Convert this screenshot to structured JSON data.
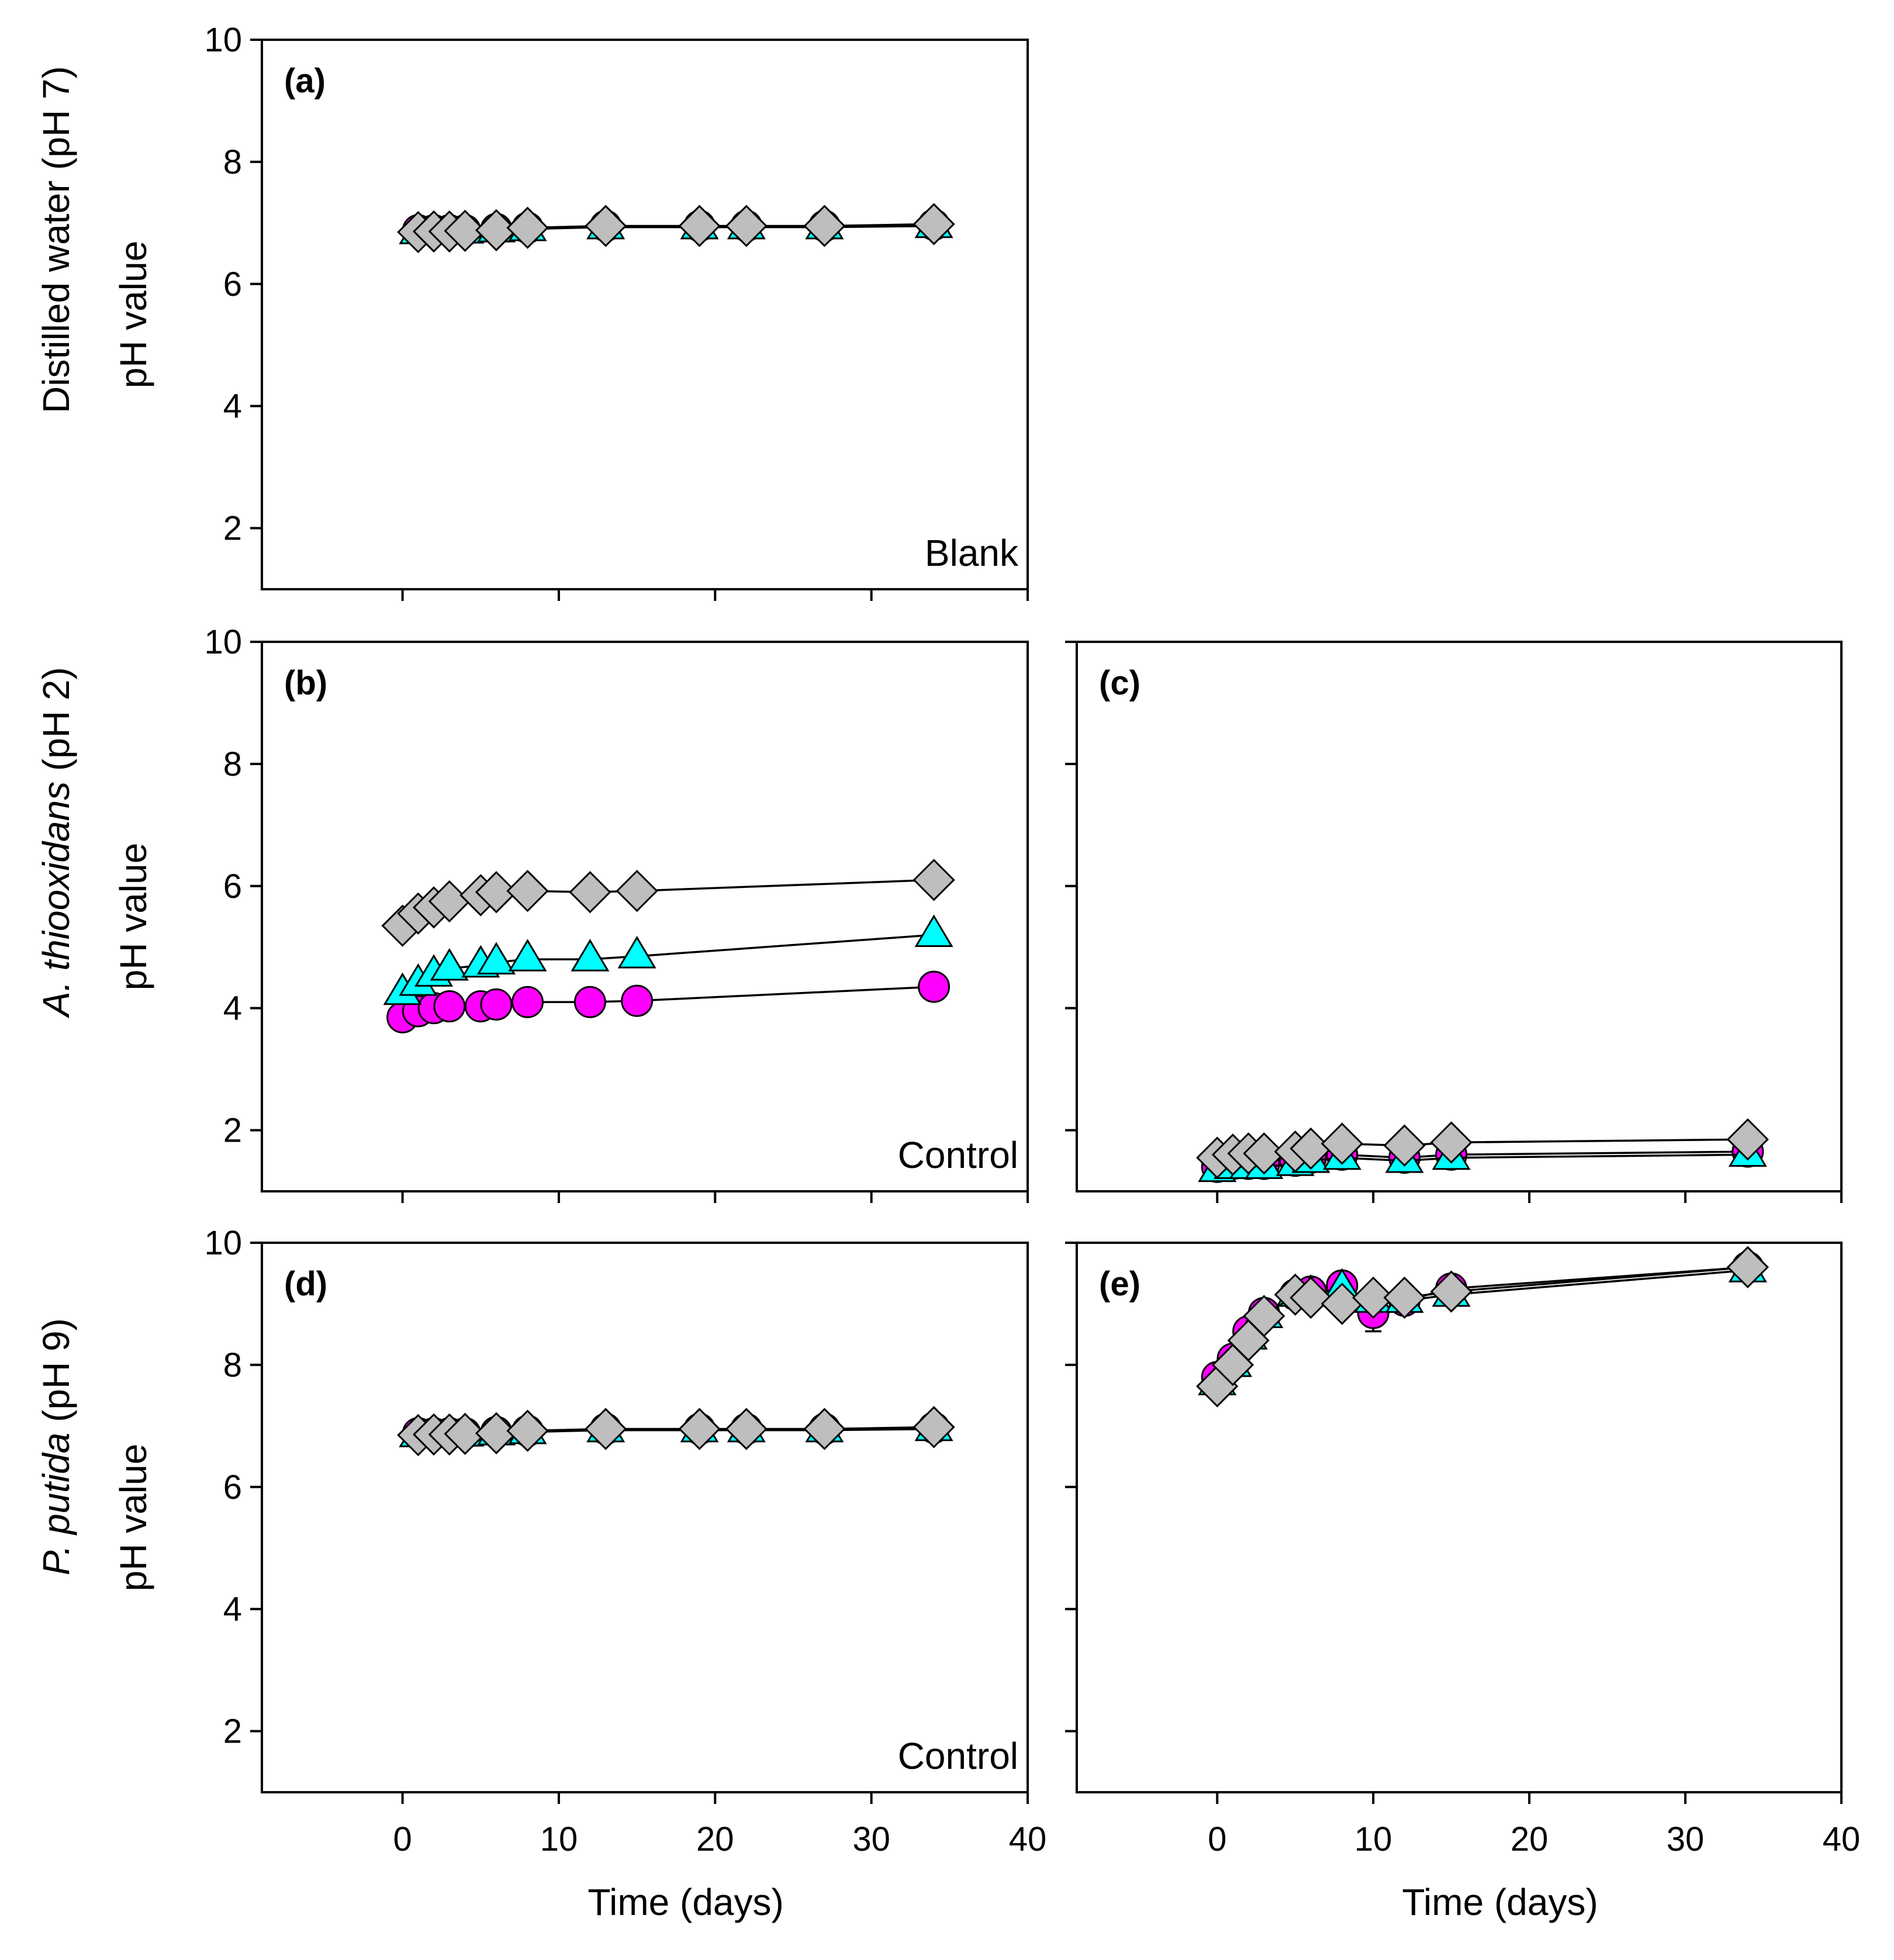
{
  "colors": {
    "circle": "#ff00ff",
    "triangle": "#00ffff",
    "diamond": "#bebebe"
  },
  "row_titles": [
    {
      "text": "Distilled water (pH 7)",
      "italic_part": ""
    },
    {
      "text": " (pH 2)",
      "italic_part": "A. thiooxidans"
    },
    {
      "text": " (pH 9)",
      "italic_part": "P. putida"
    }
  ],
  "chart_data": [
    {
      "id": "a",
      "type": "line",
      "label": "(a)",
      "note": "Blank",
      "ylabel": "pH value",
      "xlabel": "",
      "xlim": [
        -9,
        40
      ],
      "ylim": [
        1,
        10
      ],
      "xticks": [
        0,
        10,
        20,
        30,
        40
      ],
      "yticks": [
        2,
        4,
        6,
        8,
        10
      ],
      "show_xtick_labels": false,
      "show_ytick_labels": true,
      "series": [
        {
          "name": "circle",
          "marker": "circle",
          "x": [
            1,
            2,
            3,
            4,
            6,
            8,
            13,
            19,
            22,
            27,
            34
          ],
          "y": [
            6.88,
            6.88,
            6.88,
            6.88,
            6.9,
            6.92,
            6.95,
            6.95,
            6.95,
            6.95,
            6.97
          ]
        },
        {
          "name": "triangle",
          "marker": "triangle",
          "x": [
            1,
            2,
            3,
            4,
            6,
            8,
            13,
            19,
            22,
            27,
            34
          ],
          "y": [
            6.85,
            6.85,
            6.86,
            6.86,
            6.88,
            6.9,
            6.93,
            6.93,
            6.93,
            6.93,
            6.95
          ]
        },
        {
          "name": "diamond",
          "marker": "diamond",
          "x": [
            1,
            2,
            3,
            4,
            6,
            8,
            13,
            19,
            22,
            27,
            34
          ],
          "y": [
            6.85,
            6.86,
            6.86,
            6.87,
            6.88,
            6.92,
            6.95,
            6.95,
            6.95,
            6.95,
            6.98
          ]
        }
      ]
    },
    {
      "id": "b",
      "type": "line",
      "label": "(b)",
      "note": "Control",
      "ylabel": "pH value",
      "xlabel": "",
      "xlim": [
        -9,
        40
      ],
      "ylim": [
        1,
        10
      ],
      "xticks": [
        0,
        10,
        20,
        30,
        40
      ],
      "yticks": [
        2,
        4,
        6,
        8,
        10
      ],
      "show_xtick_labels": false,
      "show_ytick_labels": true,
      "series": [
        {
          "name": "circle",
          "marker": "circle",
          "x": [
            0,
            1,
            2,
            3,
            5,
            6,
            8,
            12,
            15,
            34
          ],
          "y": [
            3.85,
            3.95,
            4.0,
            4.03,
            4.03,
            4.06,
            4.1,
            4.1,
            4.12,
            4.35
          ]
        },
        {
          "name": "triangle",
          "marker": "triangle",
          "x": [
            0,
            1,
            2,
            3,
            5,
            6,
            8,
            12,
            15,
            34
          ],
          "y": [
            4.25,
            4.4,
            4.55,
            4.65,
            4.7,
            4.75,
            4.8,
            4.8,
            4.85,
            5.2
          ]
        },
        {
          "name": "diamond",
          "marker": "diamond",
          "x": [
            0,
            1,
            2,
            3,
            5,
            6,
            8,
            12,
            15,
            34
          ],
          "y": [
            5.35,
            5.55,
            5.65,
            5.75,
            5.85,
            5.9,
            5.92,
            5.9,
            5.92,
            6.1
          ]
        }
      ]
    },
    {
      "id": "c",
      "type": "line",
      "label": "(c)",
      "note": "",
      "ylabel": "",
      "xlabel": "",
      "xlim": [
        -9,
        40
      ],
      "ylim": [
        1,
        10
      ],
      "xticks": [
        0,
        10,
        20,
        30,
        40
      ],
      "yticks": [
        2,
        4,
        6,
        8,
        10
      ],
      "show_xtick_labels": false,
      "show_ytick_labels": false,
      "series": [
        {
          "name": "circle",
          "marker": "circle",
          "x": [
            0,
            1,
            2,
            3,
            5,
            6,
            8,
            12,
            15,
            34
          ],
          "y": [
            1.4,
            1.45,
            1.45,
            1.45,
            1.5,
            1.55,
            1.6,
            1.55,
            1.6,
            1.65
          ]
        },
        {
          "name": "triangle",
          "marker": "triangle",
          "x": [
            0,
            1,
            2,
            3,
            5,
            6,
            8,
            12,
            15,
            34
          ],
          "y": [
            1.35,
            1.4,
            1.4,
            1.4,
            1.45,
            1.5,
            1.55,
            1.5,
            1.55,
            1.6
          ]
        },
        {
          "name": "diamond",
          "marker": "diamond",
          "x": [
            0,
            1,
            2,
            3,
            5,
            6,
            8,
            12,
            15,
            34
          ],
          "y": [
            1.55,
            1.6,
            1.62,
            1.62,
            1.65,
            1.7,
            1.78,
            1.75,
            1.8,
            1.85
          ]
        }
      ]
    },
    {
      "id": "d",
      "type": "line",
      "label": "(d)",
      "note": "Control",
      "ylabel": "pH value",
      "xlabel": "Time (days)",
      "xlim": [
        -9,
        40
      ],
      "ylim": [
        1,
        10
      ],
      "xticks": [
        0,
        10,
        20,
        30,
        40
      ],
      "yticks": [
        2,
        4,
        6,
        8,
        10
      ],
      "show_xtick_labels": true,
      "show_ytick_labels": true,
      "series": [
        {
          "name": "circle",
          "marker": "circle",
          "x": [
            1,
            2,
            3,
            4,
            6,
            8,
            13,
            19,
            22,
            27,
            34
          ],
          "y": [
            6.88,
            6.88,
            6.88,
            6.88,
            6.9,
            6.92,
            6.95,
            6.95,
            6.95,
            6.95,
            6.97
          ]
        },
        {
          "name": "triangle",
          "marker": "triangle",
          "x": [
            1,
            2,
            3,
            4,
            6,
            8,
            13,
            19,
            22,
            27,
            34
          ],
          "y": [
            6.85,
            6.85,
            6.86,
            6.86,
            6.88,
            6.9,
            6.93,
            6.93,
            6.93,
            6.93,
            6.95
          ]
        },
        {
          "name": "diamond",
          "marker": "diamond",
          "x": [
            1,
            2,
            3,
            4,
            6,
            8,
            13,
            19,
            22,
            27,
            34
          ],
          "y": [
            6.85,
            6.86,
            6.86,
            6.87,
            6.88,
            6.92,
            6.95,
            6.95,
            6.95,
            6.95,
            6.98
          ]
        }
      ]
    },
    {
      "id": "e",
      "type": "line",
      "label": "(e)",
      "note": "",
      "ylabel": "",
      "xlabel": "Time (days)",
      "xlim": [
        -9,
        40
      ],
      "ylim": [
        1,
        10
      ],
      "xticks": [
        0,
        10,
        20,
        30,
        40
      ],
      "yticks": [
        2,
        4,
        6,
        8,
        10
      ],
      "show_xtick_labels": true,
      "show_ytick_labels": false,
      "series": [
        {
          "name": "circle",
          "marker": "circle",
          "x": [
            0,
            1,
            2,
            3,
            5,
            6,
            8,
            10,
            12,
            15,
            34
          ],
          "y": [
            7.8,
            8.1,
            8.55,
            8.85,
            9.15,
            9.2,
            9.3,
            8.85,
            9.05,
            9.25,
            9.6
          ],
          "err": [
            0,
            0,
            0,
            0,
            0,
            0,
            0,
            0.3,
            0,
            0,
            0
          ]
        },
        {
          "name": "triangle",
          "marker": "triangle",
          "x": [
            0,
            1,
            2,
            3,
            5,
            6,
            8,
            10,
            12,
            15,
            34
          ],
          "y": [
            7.7,
            8.0,
            8.45,
            8.8,
            9.15,
            9.15,
            9.25,
            9.05,
            9.05,
            9.15,
            9.55
          ]
        },
        {
          "name": "diamond",
          "marker": "diamond",
          "x": [
            0,
            1,
            2,
            3,
            5,
            6,
            8,
            10,
            12,
            15,
            34
          ],
          "y": [
            7.65,
            8.0,
            8.4,
            8.8,
            9.15,
            9.1,
            9.0,
            9.1,
            9.1,
            9.2,
            9.6
          ]
        }
      ]
    }
  ]
}
